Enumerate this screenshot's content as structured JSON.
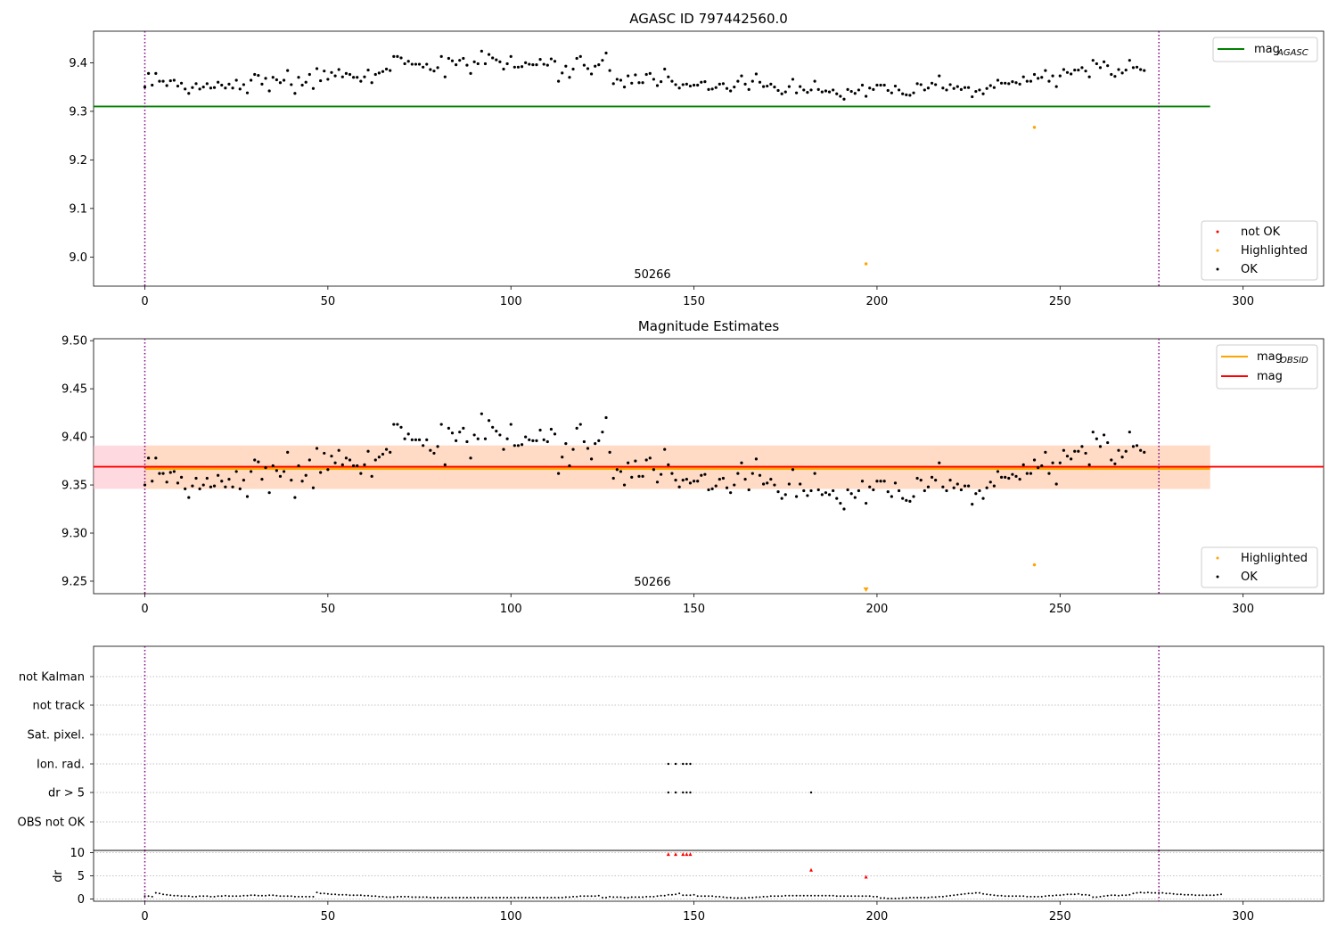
{
  "figure_title": "AGASC ID 797442560.0",
  "chart_data": [
    {
      "type": "scatter",
      "title": "AGASC ID 797442560.0",
      "annotation": "50266",
      "xlim": [
        -14,
        322
      ],
      "ylim": [
        8.94,
        9.465
      ],
      "xticks": [
        0,
        50,
        100,
        150,
        200,
        250,
        300
      ],
      "yticks": [
        9.0,
        9.1,
        9.2,
        9.3,
        9.4
      ],
      "ytick_labels": [
        "9.0",
        "9.1",
        "9.2",
        "9.3",
        "9.4"
      ],
      "vlines": [
        0,
        277
      ],
      "hlines": [
        {
          "name": "mag_AGASC",
          "y": 9.31,
          "x": [
            -14,
            291
          ],
          "color": "#008000"
        }
      ],
      "legend_lines": [
        "mag",
        "AGASC"
      ],
      "legend_points": [
        "not OK",
        "Highlighted",
        "OK"
      ],
      "highlighted": [
        {
          "x": 243,
          "y": 9.267
        },
        {
          "x": 197,
          "y": 8.986
        }
      ],
      "not_ok": [],
      "colors": {
        "ok": "#000000",
        "highlighted": "#ffa500",
        "not_ok": "#ff0000",
        "vline": "#800080"
      }
    },
    {
      "type": "scatter",
      "title": "Magnitude Estimates",
      "annotation": "50266",
      "xlim": [
        -14,
        322
      ],
      "ylim": [
        9.237,
        9.502
      ],
      "xticks": [
        0,
        50,
        100,
        150,
        200,
        250,
        300
      ],
      "yticks": [
        9.25,
        9.3,
        9.35,
        9.4,
        9.45,
        9.5
      ],
      "ytick_labels": [
        "9.25",
        "9.30",
        "9.35",
        "9.40",
        "9.45",
        "9.50"
      ],
      "vlines": [
        0,
        277
      ],
      "band_mag": {
        "y": 9.369,
        "lo": 9.346,
        "hi": 9.391,
        "x": [
          -14,
          291
        ]
      },
      "band_obsid": {
        "y": 9.367,
        "lo": 9.346,
        "hi": 9.391,
        "x": [
          0,
          291
        ]
      },
      "legend_lines": [
        "mag",
        "OBSID",
        "mag"
      ],
      "legend_points": [
        "Highlighted",
        "OK"
      ],
      "highlighted": [
        {
          "x": 243,
          "y": 9.267
        }
      ],
      "highlighted_offscale": [
        {
          "x": 197
        }
      ],
      "colors": {
        "mag": "#ff0000",
        "obsid": "#ffa500",
        "band_mag": "#ffc0cb",
        "band_obsid": "#ffdab9"
      }
    },
    {
      "type": "scatter",
      "title": "",
      "flag_labels": [
        "not Kalman",
        "not track",
        "Sat. pixel.",
        "Ion. rad.",
        "dr > 5",
        "OBS not OK"
      ],
      "flags": {
        "Ion. rad.": [
          143,
          145,
          147,
          148,
          149
        ],
        "dr > 5": [
          143,
          145,
          147,
          148,
          149,
          182
        ]
      },
      "dr_ylabel": "dr",
      "dr_ylim": [
        -0.5,
        10.5
      ],
      "dr_yticks": [
        0,
        5,
        10
      ],
      "dr_ytick_labels": [
        "0",
        "5",
        "10"
      ],
      "dr_red": [
        {
          "x": 143,
          "y": 9.7
        },
        {
          "x": 145,
          "y": 9.7
        },
        {
          "x": 147,
          "y": 9.7
        },
        {
          "x": 148,
          "y": 9.7
        },
        {
          "x": 149,
          "y": 9.7
        },
        {
          "x": 182,
          "y": 6.3
        },
        {
          "x": 197,
          "y": 4.8
        }
      ],
      "xlim": [
        -14,
        322
      ],
      "xticks": [
        0,
        50,
        100,
        150,
        200,
        250,
        300
      ],
      "vlines": [
        0,
        277
      ]
    }
  ],
  "mag_series": [
    9.35,
    9.378,
    9.354,
    9.378,
    9.362,
    9.362,
    9.353,
    9.363,
    9.364,
    9.352,
    9.358,
    9.346,
    9.337,
    9.349,
    9.357,
    9.346,
    9.35,
    9.357,
    9.348,
    9.349,
    9.36,
    9.354,
    9.348,
    9.356,
    9.348,
    9.364,
    9.346,
    9.355,
    9.338,
    9.364,
    9.376,
    9.374,
    9.356,
    9.368,
    9.342,
    9.37,
    9.365,
    9.359,
    9.364,
    9.384,
    9.355,
    9.337,
    9.37,
    9.354,
    9.36,
    9.376,
    9.347,
    9.388,
    9.363,
    9.383,
    9.366,
    9.38,
    9.373,
    9.386,
    9.371,
    9.378,
    9.376,
    9.37,
    9.37,
    9.362,
    9.371,
    9.385,
    9.359,
    9.376,
    9.379,
    9.382,
    9.387,
    9.384,
    9.413,
    9.413,
    9.41,
    9.398,
    9.403,
    9.397,
    9.397,
    9.397,
    9.391,
    9.397,
    9.386,
    9.383,
    9.39,
    9.413,
    9.371,
    9.409,
    9.404,
    9.396,
    9.405,
    9.409,
    9.395,
    9.378,
    9.402,
    9.398,
    9.424,
    9.398,
    9.417,
    9.41,
    9.406,
    9.402,
    9.387,
    9.398,
    9.413,
    9.391,
    9.391,
    9.392,
    9.4,
    9.397,
    9.396,
    9.396,
    9.407,
    9.397,
    9.395,
    9.408,
    9.403,
    9.362,
    9.379,
    9.393,
    9.37,
    9.387,
    9.409,
    9.413,
    9.395,
    9.388,
    9.377,
    9.393,
    9.396,
    9.405,
    9.42,
    9.384,
    9.357,
    9.366,
    9.364,
    9.35,
    9.373,
    9.358,
    9.375,
    9.359,
    9.359,
    9.376,
    9.378,
    9.366,
    9.353,
    9.361,
    9.387,
    9.371,
    9.362,
    9.355,
    9.348,
    9.355,
    9.356,
    9.352,
    9.354,
    9.354,
    9.36,
    9.361,
    9.345,
    9.346,
    9.349,
    9.356,
    9.357,
    9.347,
    9.342,
    9.35,
    9.362,
    9.373,
    9.356,
    9.345,
    9.362,
    9.377,
    9.36,
    9.351,
    9.352,
    9.356,
    9.35,
    9.343,
    9.336,
    9.34,
    9.351,
    9.366,
    9.338,
    9.351,
    9.344,
    9.339,
    9.344,
    9.362,
    9.345,
    9.34,
    9.342,
    9.34,
    9.344,
    9.336,
    9.331,
    9.325,
    9.345,
    9.341,
    9.337,
    9.344,
    9.354,
    9.331,
    9.348,
    9.345,
    9.354,
    9.354,
    9.354,
    9.343,
    9.338,
    9.352,
    9.344,
    9.336,
    9.334,
    9.333,
    9.338,
    9.357,
    9.355,
    9.344,
    9.348,
    9.358,
    9.355,
    9.373,
    9.348,
    9.344,
    9.355,
    9.347,
    9.351,
    9.345,
    9.349,
    9.349,
    9.33,
    9.341,
    9.344,
    9.336,
    9.347,
    9.353,
    9.349,
    9.364,
    9.358,
    9.358,
    9.357,
    9.361,
    9.359,
    9.356,
    9.371,
    9.362,
    9.362,
    9.376,
    9.368,
    9.37,
    9.384,
    9.362,
    9.373,
    9.351,
    9.373,
    9.386,
    9.38,
    9.377,
    9.385,
    9.385,
    9.39,
    9.383,
    9.371,
    9.405,
    9.398,
    9.39,
    9.402,
    9.394,
    9.376,
    9.372,
    9.386,
    9.379,
    9.385,
    9.405,
    9.39,
    9.391,
    9.386,
    9.384
  ],
  "dr_series": [
    0.6,
    0.6,
    0.5,
    1.3,
    1.2,
    1.0,
    0.9,
    0.8,
    0.7,
    0.7,
    0.6,
    0.6,
    0.6,
    0.5,
    0.5,
    0.6,
    0.6,
    0.6,
    0.5,
    0.5,
    0.6,
    0.6,
    0.7,
    0.6,
    0.6,
    0.6,
    0.6,
    0.7,
    0.7,
    0.8,
    0.8,
    0.7,
    0.7,
    0.7,
    0.8,
    0.8,
    0.7,
    0.6,
    0.6,
    0.6,
    0.6,
    0.5,
    0.5,
    0.5,
    0.5,
    0.5,
    0.5,
    1.4,
    1.2,
    1.2,
    1.1,
    1.0,
    1.0,
    0.9,
    0.9,
    0.9,
    0.8,
    0.8,
    0.8,
    0.8,
    0.7,
    0.7,
    0.6,
    0.6,
    0.5,
    0.5,
    0.4,
    0.4,
    0.4,
    0.5,
    0.5,
    0.5,
    0.5,
    0.4,
    0.4,
    0.4,
    0.4,
    0.4,
    0.3,
    0.3,
    0.3,
    0.3,
    0.3,
    0.3,
    0.3,
    0.3,
    0.3,
    0.3,
    0.3,
    0.3,
    0.3,
    0.3,
    0.3,
    0.3,
    0.3,
    0.3,
    0.3,
    0.3,
    0.3,
    0.3,
    0.3,
    0.3,
    0.3,
    0.3,
    0.3,
    0.3,
    0.3,
    0.3,
    0.3,
    0.3,
    0.3,
    0.3,
    0.3,
    0.3,
    0.3,
    0.4,
    0.4,
    0.5,
    0.5,
    0.6,
    0.6,
    0.6,
    0.6,
    0.6,
    0.7,
    0.3,
    0.3,
    0.5,
    0.4,
    0.4,
    0.4,
    0.3,
    0.3,
    0.4,
    0.4,
    0.4,
    0.4,
    0.5,
    0.5,
    0.5,
    0.6,
    0.7,
    0.7,
    0.9,
    0.9,
    1.0,
    1.2,
    0.8,
    0.8,
    0.8,
    0.9,
    0.6,
    0.6,
    0.6,
    0.6,
    0.6,
    0.5,
    0.5,
    0.4,
    0.3,
    0.3,
    0.2,
    0.2,
    0.2,
    0.2,
    0.3,
    0.3,
    0.4,
    0.4,
    0.5,
    0.5,
    0.6,
    0.6,
    0.6,
    0.6,
    0.7,
    0.7,
    0.7,
    0.7,
    0.7,
    0.7,
    0.7,
    0.7,
    0.7,
    0.7,
    0.7,
    0.7,
    0.7,
    0.7,
    0.6,
    0.6,
    0.6,
    0.6,
    0.6,
    0.6,
    0.6,
    0.6,
    0.6,
    0.6,
    0.5,
    0.5,
    0.2,
    0.2,
    0.1,
    0.1,
    0.1,
    0.1,
    0.2,
    0.2,
    0.3,
    0.3,
    0.3,
    0.3,
    0.3,
    0.3,
    0.4,
    0.4,
    0.5,
    0.5,
    0.6,
    0.7,
    0.8,
    0.9,
    1.0,
    1.1,
    1.2,
    1.2,
    1.3,
    1.3,
    1.1,
    1.0,
    0.9,
    0.8,
    0.7,
    0.7,
    0.6,
    0.6,
    0.6,
    0.6,
    0.6,
    0.6,
    0.5,
    0.5,
    0.5,
    0.5,
    0.5,
    0.6,
    0.7,
    0.7,
    0.8,
    0.8,
    0.9,
    1.0,
    1.0,
    1.0,
    1.1,
    0.9,
    0.9,
    0.8,
    0.4,
    0.4,
    0.5,
    0.6,
    0.7,
    0.8,
    0.8,
    0.7,
    0.8,
    0.8,
    0.9,
    1.2,
    1.3,
    1.4,
    1.3,
    1.4,
    1.3,
    1.3,
    1.3,
    1.3,
    1.2,
    1.2,
    1.1,
    1.0,
    1.0,
    0.9,
    0.9,
    0.9,
    0.8,
    0.8,
    0.8,
    0.8,
    0.8,
    0.8,
    0.9,
    1.0
  ]
}
